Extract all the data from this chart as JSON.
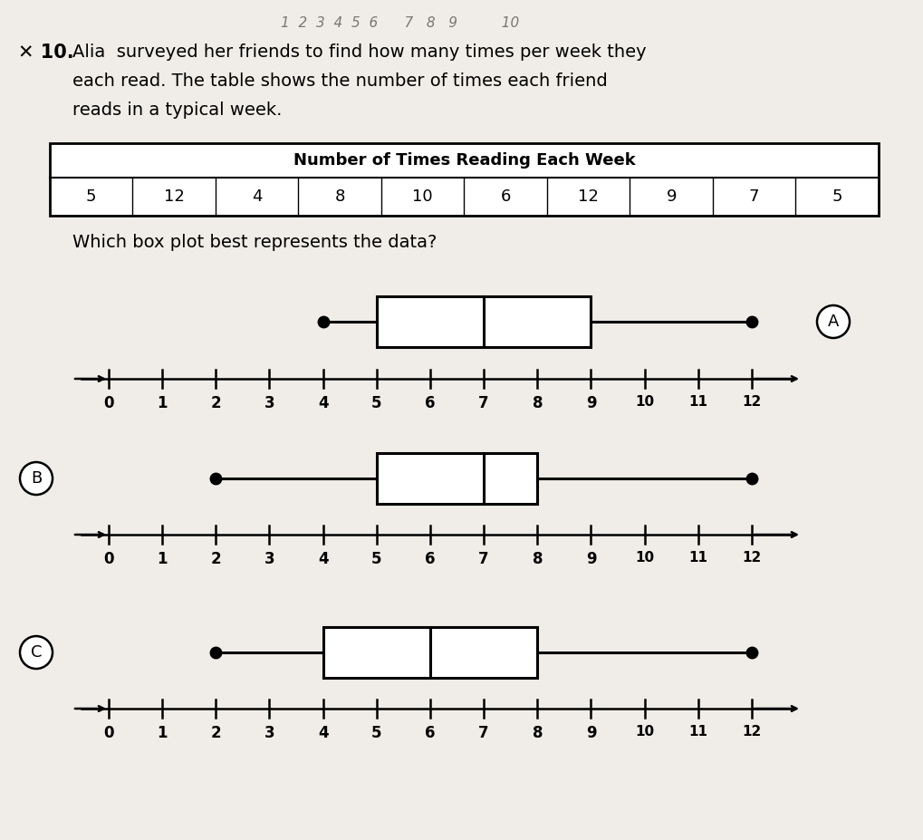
{
  "background_color": "#f0ede8",
  "paper_color": "#f5f2ee",
  "handwritten_top": "1  2  3  4  5  6      7   8   9          10",
  "title_mark": "✕ 10.",
  "question_line1": "Alia  surveyed her friends to find how many times per week they",
  "question_line2": "each read. The table shows the number of times each friend",
  "question_line3": "reads in a typical week.",
  "table_title": "Number of Times Reading Each Week",
  "table_values": [
    5,
    12,
    4,
    8,
    10,
    6,
    12,
    9,
    7,
    5
  ],
  "which_question": "Which box plot best represents the data?",
  "plots": [
    {
      "label": "A",
      "label_side": "right",
      "min_val": 4,
      "q1": 5,
      "median": 7,
      "q3": 9,
      "max_val": 12
    },
    {
      "label": "B",
      "label_side": "left",
      "min_val": 2,
      "q1": 5,
      "median": 7,
      "q3": 8,
      "max_val": 12
    },
    {
      "label": "C",
      "label_side": "left",
      "min_val": 2,
      "q1": 4,
      "median": 6,
      "q3": 8,
      "max_val": 12
    }
  ]
}
